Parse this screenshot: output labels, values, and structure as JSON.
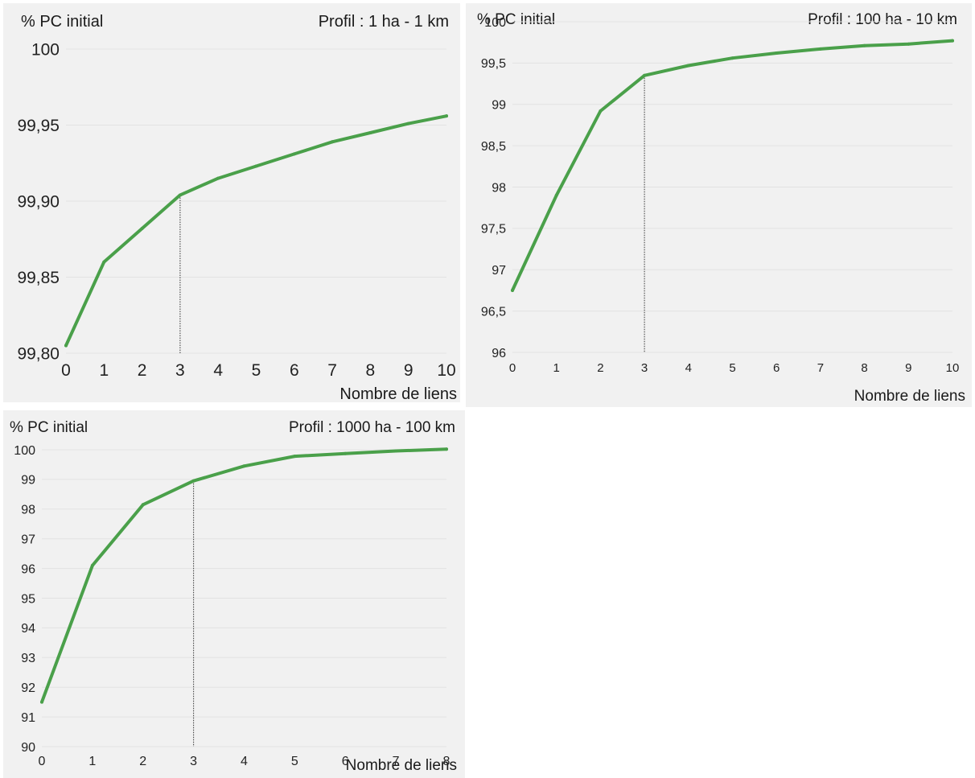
{
  "chart_data": [
    {
      "type": "line",
      "title": "Profil : 1 ha - 1 km",
      "ylabel": "% PC initial",
      "xlabel": "Nombre de liens",
      "x": [
        0,
        1,
        2,
        3,
        4,
        5,
        6,
        7,
        8,
        9,
        10
      ],
      "series": [
        {
          "values": [
            99.805,
            99.86,
            99.882,
            99.904,
            99.915,
            99.923,
            99.931,
            99.939,
            99.945,
            99.951,
            99.956
          ]
        }
      ],
      "xlim": [
        0,
        10
      ],
      "ylim": [
        99.8,
        100
      ],
      "yticks": [
        99.8,
        99.85,
        99.9,
        99.95,
        100
      ],
      "ytick_labels": [
        "99,80",
        "99,85",
        "99,90",
        "99,95",
        "100"
      ],
      "xticks": [
        0,
        1,
        2,
        3,
        4,
        5,
        6,
        7,
        8,
        9,
        10
      ],
      "marker_x": 3,
      "grid": true,
      "line_color": "#4aa04a"
    },
    {
      "type": "line",
      "title": "Profil : 100 ha - 10 km",
      "ylabel": "% PC initial",
      "xlabel": "Nombre de liens",
      "x": [
        0,
        1,
        2,
        3,
        4,
        5,
        6,
        7,
        8,
        9,
        10
      ],
      "series": [
        {
          "values": [
            96.75,
            97.9,
            98.92,
            99.35,
            99.47,
            99.56,
            99.62,
            99.67,
            99.71,
            99.73,
            99.77
          ]
        }
      ],
      "xlim": [
        0,
        10
      ],
      "ylim": [
        96,
        100
      ],
      "yticks": [
        96,
        96.5,
        97,
        97.5,
        98,
        98.5,
        99,
        99.5,
        100
      ],
      "ytick_labels": [
        "96",
        "96,5",
        "97",
        "97,5",
        "98",
        "98,5",
        "99",
        "99,5",
        "100"
      ],
      "xticks": [
        0,
        1,
        2,
        3,
        4,
        5,
        6,
        7,
        8,
        9,
        10
      ],
      "marker_x": 3,
      "grid": true,
      "line_color": "#4aa04a"
    },
    {
      "type": "line",
      "title": "Profil : 1000 ha - 100 km",
      "ylabel": "% PC initial",
      "xlabel": "Nombre de liens",
      "x": [
        0,
        1,
        2,
        3,
        4,
        5,
        6,
        7,
        8
      ],
      "series": [
        {
          "values": [
            91.5,
            96.1,
            98.15,
            98.95,
            99.45,
            99.78,
            99.87,
            99.96,
            100.02
          ]
        }
      ],
      "xlim": [
        0,
        8
      ],
      "ylim": [
        90,
        100
      ],
      "yticks": [
        90,
        91,
        92,
        93,
        94,
        95,
        96,
        97,
        98,
        99,
        100
      ],
      "ytick_labels": [
        "90",
        "91",
        "92",
        "93",
        "94",
        "95",
        "96",
        "97",
        "98",
        "99",
        "100"
      ],
      "xticks": [
        0,
        1,
        2,
        3,
        4,
        5,
        6,
        7,
        8
      ],
      "marker_x": 3,
      "grid": true,
      "line_color": "#4aa04a"
    }
  ]
}
